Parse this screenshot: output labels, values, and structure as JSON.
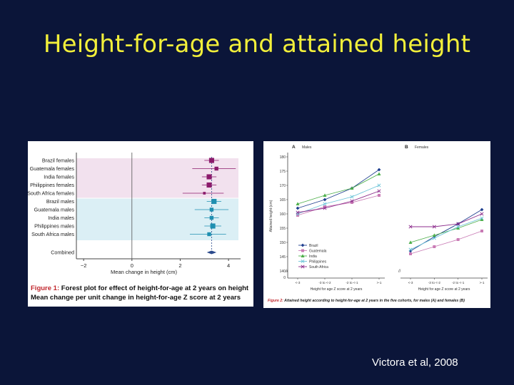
{
  "slide": {
    "title": "Height-for-age and attained height",
    "citation": "Victora et al, 2008"
  },
  "colors": {
    "background": "#0b1539",
    "title": "#f2ef3a",
    "female_band": "#f2e1ee",
    "male_band": "#dbeff5",
    "female_marker": "#8b1a6b",
    "male_marker": "#1f8fb0",
    "combined_marker": "#2b4a8c"
  },
  "chart_data": [
    {
      "type": "forest",
      "caption_label": "Figure 1:",
      "caption_rest": "Forest plot for effect of height-for-age at 2 years on height",
      "caption_line2": "Mean change per unit change in height-for-age Z score at 2 years",
      "xlabel": "Mean change in height (cm)",
      "xlim": [
        -2.3,
        4.5
      ],
      "xticks": [
        -2,
        0,
        2,
        4
      ],
      "rows": [
        {
          "label": "Brazil females",
          "group": "female",
          "est": 3.3,
          "lo": 3.0,
          "hi": 3.6,
          "w": 3
        },
        {
          "label": "Guatemala females",
          "group": "female",
          "est": 3.5,
          "lo": 2.5,
          "hi": 4.3,
          "w": 2
        },
        {
          "label": "India females",
          "group": "female",
          "est": 3.2,
          "lo": 2.9,
          "hi": 3.5,
          "w": 3
        },
        {
          "label": "Philippines females",
          "group": "female",
          "est": 3.2,
          "lo": 2.9,
          "hi": 3.5,
          "w": 3
        },
        {
          "label": "South Africa females",
          "group": "female",
          "est": 3.0,
          "lo": 2.1,
          "hi": 3.8,
          "w": 1
        },
        {
          "label": "Brazil males",
          "group": "male",
          "est": 3.4,
          "lo": 3.1,
          "hi": 3.7,
          "w": 3
        },
        {
          "label": "Guatemala males",
          "group": "male",
          "est": 3.3,
          "lo": 2.6,
          "hi": 4.0,
          "w": 2
        },
        {
          "label": "India males",
          "group": "male",
          "est": 3.3,
          "lo": 3.0,
          "hi": 3.6,
          "w": 2
        },
        {
          "label": "Philippines males",
          "group": "male",
          "est": 3.35,
          "lo": 3.0,
          "hi": 3.7,
          "w": 3
        },
        {
          "label": "South Africa males",
          "group": "male",
          "est": 3.2,
          "lo": 2.4,
          "hi": 3.9,
          "w": 2
        }
      ],
      "combined": {
        "label": "Combined",
        "est": 3.3,
        "lo": 3.1,
        "hi": 3.5
      }
    },
    {
      "type": "line",
      "caption_label": "Figure 2:",
      "caption_rest": "Attained height according to height-for-age at 2 years in the five cohorts, for males (A) and females (B)",
      "ylabel": "Attained height (cm)",
      "ylim": [
        140,
        180
      ],
      "yticks": [
        140,
        145,
        150,
        155,
        160,
        165,
        170,
        175,
        180
      ],
      "y_break_tick": "0",
      "categories": [
        "<-3",
        "-3 to <-2",
        "-2 to <-1",
        ">-1"
      ],
      "xlabel": "Height for age Z score at 2 years",
      "legend": [
        "Brazil",
        "Guatemala",
        "India",
        "Philippines",
        "South Africa"
      ],
      "series_colors": [
        "#1f3f8f",
        "#c97bb5",
        "#4daf4a",
        "#6bc3d8",
        "#8c2d8c"
      ],
      "series_markers": [
        "diamond",
        "square",
        "triangle",
        "x",
        "x"
      ],
      "panels": [
        {
          "letter": "A",
          "title": "Males",
          "series": [
            {
              "name": "Brazil",
              "values": [
                162.0,
                165.0,
                169.0,
                175.5
              ]
            },
            {
              "name": "Guatemala",
              "values": [
                159.5,
                162.5,
                164.0,
                166.5
              ]
            },
            {
              "name": "India",
              "values": [
                163.5,
                166.5,
                169.0,
                174.0
              ]
            },
            {
              "name": "Philippines",
              "values": [
                160.0,
                163.5,
                166.0,
                170.0
              ]
            },
            {
              "name": "South Africa",
              "values": [
                160.5,
                162.0,
                164.5,
                168.0
              ]
            }
          ]
        },
        {
          "letter": "B",
          "title": "Females",
          "series": [
            {
              "name": "Brazil",
              "values": [
                147.0,
                152.0,
                156.5,
                161.5
              ]
            },
            {
              "name": "Guatemala",
              "values": [
                146.0,
                148.5,
                151.0,
                154.0
              ]
            },
            {
              "name": "India",
              "values": [
                150.0,
                152.5,
                155.0,
                158.0
              ]
            },
            {
              "name": "Philippines",
              "values": [
                147.5,
                151.5,
                155.5,
                158.5
              ]
            },
            {
              "name": "South Africa",
              "values": [
                155.5,
                155.5,
                156.5,
                160.0
              ]
            }
          ]
        }
      ]
    }
  ]
}
